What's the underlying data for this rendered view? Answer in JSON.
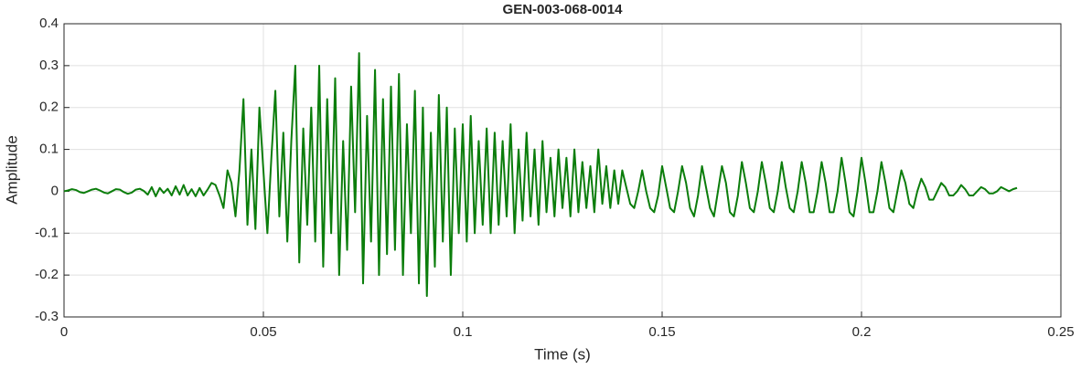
{
  "chart_data": {
    "type": "line",
    "title": "GEN-003-068-0014",
    "x_label": "Time (s)",
    "y_label": "Amplitude",
    "color": "#0b7d0b",
    "grid": true,
    "xlim": [
      0,
      0.25
    ],
    "xticks": [
      0,
      0.05,
      0.1,
      0.15,
      0.2,
      0.25
    ],
    "ylim": [
      -0.3,
      0.4
    ],
    "yticks": [
      -0.3,
      -0.2,
      -0.1,
      0,
      0.1,
      0.2,
      0.3,
      0.4
    ],
    "x": [
      0,
      0.001,
      0.002,
      0.003,
      0.004,
      0.005,
      0.006,
      0.007,
      0.008,
      0.009,
      0.01,
      0.011,
      0.012,
      0.013,
      0.014,
      0.015,
      0.016,
      0.017,
      0.018,
      0.019,
      0.02,
      0.021,
      0.022,
      0.023,
      0.024,
      0.025,
      0.026,
      0.027,
      0.028,
      0.029,
      0.03,
      0.031,
      0.032,
      0.033,
      0.034,
      0.035,
      0.036,
      0.037,
      0.038,
      0.039,
      0.04,
      0.041,
      0.042,
      0.043,
      0.044,
      0.045,
      0.046,
      0.047,
      0.048,
      0.049,
      0.05,
      0.051,
      0.052,
      0.053,
      0.054,
      0.055,
      0.056,
      0.057,
      0.058,
      0.059,
      0.06,
      0.061,
      0.062,
      0.063,
      0.064,
      0.065,
      0.066,
      0.067,
      0.068,
      0.069,
      0.07,
      0.071,
      0.072,
      0.073,
      0.074,
      0.075,
      0.076,
      0.077,
      0.078,
      0.079,
      0.08,
      0.081,
      0.082,
      0.083,
      0.084,
      0.085,
      0.086,
      0.087,
      0.088,
      0.089,
      0.09,
      0.091,
      0.092,
      0.093,
      0.094,
      0.095,
      0.096,
      0.097,
      0.098,
      0.099,
      0.1,
      0.101,
      0.102,
      0.103,
      0.104,
      0.105,
      0.106,
      0.107,
      0.108,
      0.109,
      0.11,
      0.111,
      0.112,
      0.113,
      0.114,
      0.115,
      0.116,
      0.117,
      0.118,
      0.119,
      0.12,
      0.121,
      0.122,
      0.123,
      0.124,
      0.125,
      0.126,
      0.127,
      0.128,
      0.129,
      0.13,
      0.131,
      0.132,
      0.133,
      0.134,
      0.135,
      0.136,
      0.137,
      0.138,
      0.139,
      0.14,
      0.141,
      0.142,
      0.143,
      0.144,
      0.145,
      0.146,
      0.147,
      0.148,
      0.149,
      0.15,
      0.151,
      0.152,
      0.153,
      0.154,
      0.155,
      0.156,
      0.157,
      0.158,
      0.159,
      0.16,
      0.161,
      0.162,
      0.163,
      0.164,
      0.165,
      0.166,
      0.167,
      0.168,
      0.169,
      0.17,
      0.171,
      0.172,
      0.173,
      0.174,
      0.175,
      0.176,
      0.177,
      0.178,
      0.179,
      0.18,
      0.181,
      0.182,
      0.183,
      0.184,
      0.185,
      0.186,
      0.187,
      0.188,
      0.189,
      0.19,
      0.191,
      0.192,
      0.193,
      0.194,
      0.195,
      0.196,
      0.197,
      0.198,
      0.199,
      0.2,
      0.201,
      0.202,
      0.203,
      0.204,
      0.205,
      0.206,
      0.207,
      0.208,
      0.209,
      0.21,
      0.211,
      0.212,
      0.213,
      0.214,
      0.215,
      0.216,
      0.217,
      0.218,
      0.219,
      0.22,
      0.221,
      0.222,
      0.223,
      0.224,
      0.225,
      0.226,
      0.227,
      0.228,
      0.229,
      0.23,
      0.231,
      0.232,
      0.233,
      0.234,
      0.235,
      0.236,
      0.237,
      0.238,
      0.239
    ],
    "values": [
      0,
      0.002,
      0.005,
      0.003,
      -0.002,
      -0.004,
      0,
      0.004,
      0.006,
      0.002,
      -0.003,
      -0.005,
      0,
      0.005,
      0.004,
      -0.002,
      -0.006,
      -0.003,
      0.004,
      0.006,
      0.001,
      -0.008,
      0.01,
      -0.012,
      0.008,
      -0.004,
      0.006,
      -0.01,
      0.012,
      -0.008,
      0.015,
      -0.01,
      0.005,
      -0.012,
      0.008,
      -0.01,
      0.004,
      0.02,
      0.015,
      -0.01,
      -0.04,
      0.05,
      0.02,
      -0.06,
      0.05,
      0.22,
      -0.08,
      0.1,
      -0.09,
      0.2,
      0.05,
      -0.1,
      0.08,
      0.24,
      -0.06,
      0.14,
      -0.12,
      0.12,
      0.3,
      -0.17,
      0.15,
      -0.08,
      0.2,
      -0.12,
      0.3,
      -0.18,
      0.22,
      -0.1,
      0.27,
      -0.2,
      0.12,
      -0.14,
      0.25,
      -0.05,
      0.33,
      -0.22,
      0.18,
      -0.12,
      0.29,
      -0.2,
      0.22,
      -0.15,
      0.25,
      -0.14,
      0.28,
      -0.2,
      0.16,
      -0.1,
      0.24,
      -0.22,
      0.2,
      -0.25,
      0.14,
      -0.18,
      0.23,
      -0.12,
      0.2,
      -0.2,
      0.15,
      -0.1,
      0.16,
      -0.12,
      0.18,
      -0.1,
      0.12,
      -0.08,
      0.15,
      -0.1,
      0.14,
      -0.08,
      0.12,
      -0.06,
      0.16,
      -0.1,
      0.1,
      -0.07,
      0.14,
      -0.06,
      0.1,
      -0.08,
      0.12,
      -0.05,
      0.08,
      -0.06,
      0.1,
      -0.04,
      0.08,
      -0.06,
      0.1,
      -0.05,
      0.07,
      -0.04,
      0.06,
      -0.05,
      0.1,
      -0.03,
      0.06,
      -0.04,
      0.05,
      -0.03,
      0.05,
      0.01,
      -0.03,
      -0.04,
      0.0,
      0.05,
      0.0,
      -0.04,
      -0.05,
      -0.01,
      0.06,
      0.01,
      -0.04,
      -0.05,
      0.0,
      0.06,
      0.02,
      -0.04,
      -0.06,
      -0.01,
      0.06,
      0.01,
      -0.04,
      -0.06,
      0.0,
      0.06,
      0.02,
      -0.05,
      -0.06,
      -0.01,
      0.07,
      0.02,
      -0.04,
      -0.05,
      0.0,
      0.07,
      0.02,
      -0.04,
      -0.05,
      0.0,
      0.07,
      0.01,
      -0.04,
      -0.05,
      0.0,
      0.07,
      0.02,
      -0.05,
      -0.05,
      0.0,
      0.07,
      0.02,
      -0.05,
      -0.05,
      0.0,
      0.08,
      0.02,
      -0.05,
      -0.06,
      0.0,
      0.08,
      0.02,
      -0.05,
      -0.05,
      0.0,
      0.07,
      0.02,
      -0.04,
      -0.05,
      0.0,
      0.05,
      0.02,
      -0.03,
      -0.04,
      0.0,
      0.03,
      0.01,
      -0.02,
      -0.02,
      0.0,
      0.02,
      0.01,
      -0.01,
      -0.01,
      0.0,
      0.015,
      0.005,
      -0.01,
      -0.01,
      0.0,
      0.01,
      0.005,
      -0.005,
      -0.005,
      0.0,
      0.01,
      0.005,
      0.0,
      0.005,
      0.008
    ]
  }
}
